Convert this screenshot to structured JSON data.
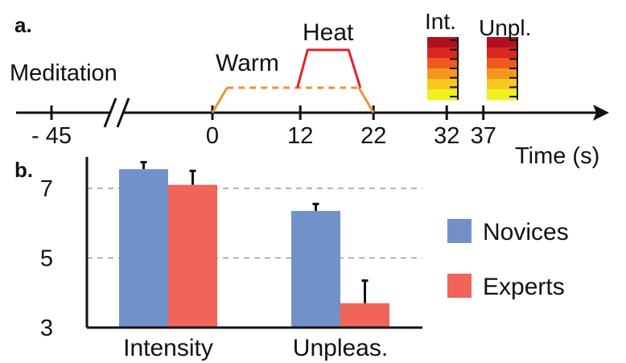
{
  "panel_a": {
    "label": "a.",
    "meditation_label": "Meditation",
    "warm_label": "Warm",
    "heat_label": "Heat",
    "rating_labels": [
      "Int.",
      "Unpl."
    ],
    "time_ticks": [
      "- 45",
      "0",
      "12",
      "22",
      "32",
      "37"
    ],
    "time_values": [
      -45,
      0,
      12,
      22,
      32,
      37
    ],
    "time_axis_label": "Time (s)",
    "warm_color": "#f0923a",
    "heat_color": "#e8202a",
    "rating_scale_colors": [
      "#b01020",
      "#d82820",
      "#ee5a1e",
      "#f5961e",
      "#f8c81e",
      "#f0f020"
    ]
  },
  "chart_data": {
    "type": "bar",
    "panel_label": "b.",
    "categories": [
      "Intensity",
      "Unpleas."
    ],
    "series": [
      {
        "name": "Novices",
        "values": [
          7.55,
          6.35
        ],
        "errors": [
          0.2,
          0.2
        ],
        "color": "#7291c8"
      },
      {
        "name": "Experts",
        "values": [
          7.1,
          3.7
        ],
        "errors": [
          0.4,
          0.65
        ],
        "color": "#f0645a"
      }
    ],
    "yticks": [
      "3",
      "5",
      "7"
    ],
    "ytick_values": [
      3,
      5,
      7
    ],
    "ylim": [
      3,
      7.9
    ],
    "grid": "dashed horizontal at y ticks",
    "legend_placement": "right"
  }
}
